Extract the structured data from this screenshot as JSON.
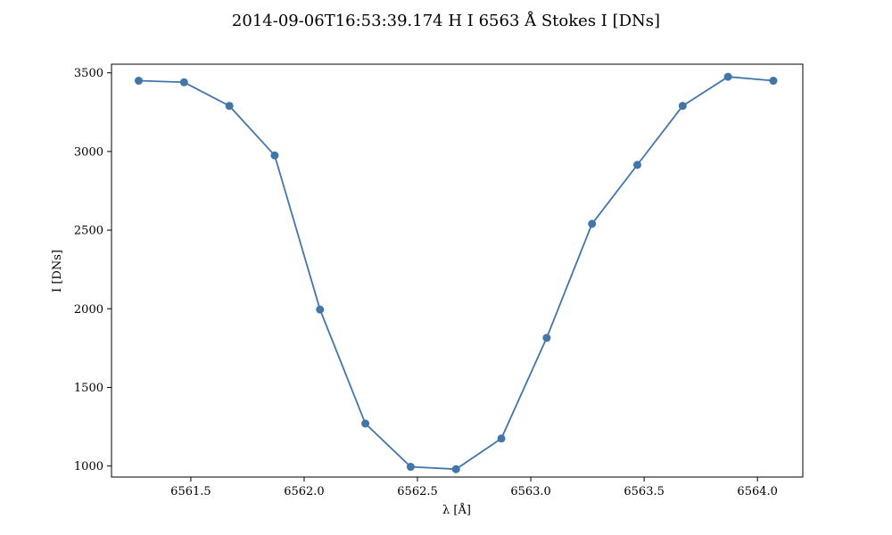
{
  "chart_data": {
    "type": "line",
    "title": "2014-09-06T16:53:39.174 H I 6563 Å Stokes I [DNs]",
    "xlabel": "λ [Å]",
    "ylabel": "I [DNs]",
    "xlim": [
      6561.15,
      6564.2
    ],
    "ylim": [
      930,
      3555
    ],
    "xticks": [
      6561.5,
      6562.0,
      6562.5,
      6563.0,
      6563.5,
      6564.0
    ],
    "xtick_labels": [
      "6561.5",
      "6562.0",
      "6562.5",
      "6563.0",
      "6563.5",
      "6564.0"
    ],
    "yticks": [
      1000,
      1500,
      2000,
      2500,
      3000,
      3500
    ],
    "ytick_labels": [
      "1000",
      "1500",
      "2000",
      "2500",
      "3000",
      "3500"
    ],
    "grid": false,
    "color": "#4275a8",
    "x": [
      6561.27,
      6561.47,
      6561.67,
      6561.87,
      6562.07,
      6562.27,
      6562.47,
      6562.67,
      6562.87,
      6563.07,
      6563.27,
      6563.47,
      6563.67,
      6563.87,
      6564.07
    ],
    "y": [
      3450,
      3440,
      3290,
      2975,
      1995,
      1270,
      995,
      980,
      1175,
      1815,
      2540,
      2915,
      3290,
      3475,
      3450
    ]
  }
}
